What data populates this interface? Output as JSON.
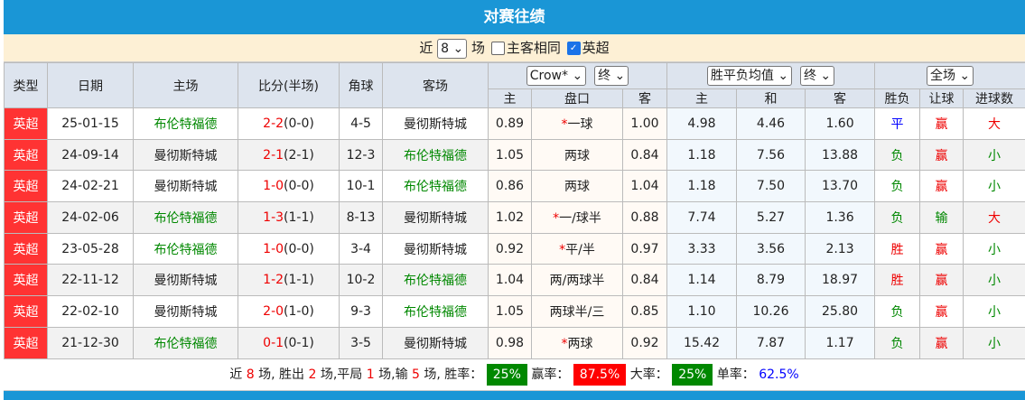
{
  "title": "对赛往绩",
  "filter": {
    "recent_label": "近",
    "count": "8",
    "games_label": "场",
    "same_home_label": "主客相同",
    "same_home_checked": false,
    "league_label": "英超",
    "league_checked": true
  },
  "headers": {
    "type": "类型",
    "date": "日期",
    "home": "主场",
    "score": "比分(半场)",
    "corner": "角球",
    "away": "客场",
    "company": "Crow*",
    "company_stage": "终",
    "euro": "胜平负均值",
    "euro_stage": "终",
    "period": "全场",
    "ah_home": "主",
    "ah_line": "盘口",
    "ah_away": "客",
    "eu_home": "主",
    "eu_draw": "和",
    "eu_away": "客",
    "wl": "胜负",
    "handicap": "让球",
    "goals": "进球数"
  },
  "rows": [
    {
      "type": "英超",
      "date": "25-01-15",
      "home": "布伦特福德",
      "home_hl": true,
      "score": "2-2",
      "half": "(0-0)",
      "corner": "4-5",
      "away": "曼彻斯特城",
      "away_hl": false,
      "ah_home": "0.89",
      "star": "*",
      "line": "一球",
      "ah_away": "1.00",
      "eu_home": "4.98",
      "eu_draw": "4.46",
      "eu_away": "1.60",
      "wl": "平",
      "hc": "赢",
      "goals": "大"
    },
    {
      "type": "英超",
      "date": "24-09-14",
      "home": "曼彻斯特城",
      "home_hl": false,
      "score": "2-1",
      "half": "(2-1)",
      "corner": "12-3",
      "away": "布伦特福德",
      "away_hl": true,
      "ah_home": "1.05",
      "star": "",
      "line": "两球",
      "ah_away": "0.84",
      "eu_home": "1.18",
      "eu_draw": "7.56",
      "eu_away": "13.88",
      "wl": "负",
      "hc": "赢",
      "goals": "小"
    },
    {
      "type": "英超",
      "date": "24-02-21",
      "home": "曼彻斯特城",
      "home_hl": false,
      "score": "1-0",
      "half": "(0-0)",
      "corner": "10-1",
      "away": "布伦特福德",
      "away_hl": true,
      "ah_home": "0.86",
      "star": "",
      "line": "两球",
      "ah_away": "1.04",
      "eu_home": "1.18",
      "eu_draw": "7.50",
      "eu_away": "13.70",
      "wl": "负",
      "hc": "赢",
      "goals": "小"
    },
    {
      "type": "英超",
      "date": "24-02-06",
      "home": "布伦特福德",
      "home_hl": true,
      "score": "1-3",
      "half": "(1-1)",
      "corner": "8-13",
      "away": "曼彻斯特城",
      "away_hl": false,
      "ah_home": "1.02",
      "star": "*",
      "line": "一/球半",
      "ah_away": "0.88",
      "eu_home": "7.74",
      "eu_draw": "5.27",
      "eu_away": "1.36",
      "wl": "负",
      "hc": "输",
      "goals": "大"
    },
    {
      "type": "英超",
      "date": "23-05-28",
      "home": "布伦特福德",
      "home_hl": true,
      "score": "1-0",
      "half": "(0-0)",
      "corner": "3-4",
      "away": "曼彻斯特城",
      "away_hl": false,
      "ah_home": "0.92",
      "star": "*",
      "line": "平/半",
      "ah_away": "0.97",
      "eu_home": "3.33",
      "eu_draw": "3.56",
      "eu_away": "2.13",
      "wl": "胜",
      "hc": "赢",
      "goals": "小"
    },
    {
      "type": "英超",
      "date": "22-11-12",
      "home": "曼彻斯特城",
      "home_hl": false,
      "score": "1-2",
      "half": "(1-1)",
      "corner": "10-2",
      "away": "布伦特福德",
      "away_hl": true,
      "ah_home": "1.04",
      "star": "",
      "line": "两/两球半",
      "ah_away": "0.84",
      "eu_home": "1.14",
      "eu_draw": "8.79",
      "eu_away": "18.97",
      "wl": "胜",
      "hc": "赢",
      "goals": "小"
    },
    {
      "type": "英超",
      "date": "22-02-10",
      "home": "曼彻斯特城",
      "home_hl": false,
      "score": "2-0",
      "half": "(1-0)",
      "corner": "9-3",
      "away": "布伦特福德",
      "away_hl": true,
      "ah_home": "1.05",
      "star": "",
      "line": "两球半/三",
      "ah_away": "0.85",
      "eu_home": "1.10",
      "eu_draw": "10.26",
      "eu_away": "25.80",
      "wl": "负",
      "hc": "赢",
      "goals": "小"
    },
    {
      "type": "英超",
      "date": "21-12-30",
      "home": "布伦特福德",
      "home_hl": true,
      "score": "0-1",
      "half": "(0-1)",
      "corner": "3-5",
      "away": "曼彻斯特城",
      "away_hl": false,
      "ah_home": "0.98",
      "star": "*",
      "line": "两球",
      "ah_away": "0.92",
      "eu_home": "15.42",
      "eu_draw": "7.87",
      "eu_away": "1.17",
      "wl": "负",
      "hc": "赢",
      "goals": "小"
    }
  ],
  "summary": {
    "t1": "近",
    "games": "8",
    "t2": "场, 胜出",
    "wins": "2",
    "t3": "场,平局",
    "draws": "1",
    "t4": "场,输",
    "losses": "5",
    "t5": "场, 胜率：",
    "win_rate": "25%",
    "t6": "赢率：",
    "hc_rate": "87.5%",
    "t7": "大率：",
    "over_rate": "25%",
    "t8": "单率：",
    "odd_rate": "62.5%"
  },
  "colors": {
    "header_bar": "#1a96d6",
    "win": "#e00",
    "draw": "#00f",
    "loss": "#080",
    "league": "#f33"
  }
}
